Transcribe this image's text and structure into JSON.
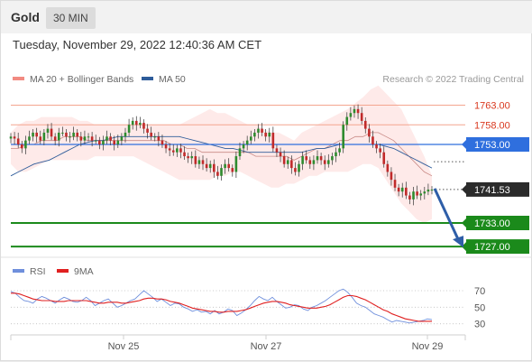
{
  "header": {
    "asset": "Gold",
    "timeframe": "30 MIN",
    "timestamp": "Tuesday, November 29, 2022 12:40:36 AM CET"
  },
  "colors": {
    "bollinger": "#f28b82",
    "bollinger_fill": "#fde3e1",
    "ma50": "#2e5c9a",
    "resistance": "#f4a58f",
    "pivot": "#2f6fde",
    "support": "#1b8a1b",
    "forecast_arrow": "#2e5ea8",
    "rsi": "#6f8fdc",
    "rsi_ma": "#e02020",
    "up_candle": "#2e8b2e",
    "down_candle": "#c02a2a"
  },
  "chart_data": [
    {
      "type": "candlestick",
      "legend": [
        {
          "name": "MA 20 + Bollinger Bands",
          "color": "#f28b82"
        },
        {
          "name": "MA 50",
          "color": "#2e5c9a"
        }
      ],
      "credit": "Research © 2022 Trading Central",
      "x_ticks": [
        "Nov 25",
        "Nov 27",
        "Nov 29"
      ],
      "levels": [
        {
          "value": 1763.0,
          "label": "1763.00",
          "kind": "resistance"
        },
        {
          "value": 1758.0,
          "label": "1758.00",
          "kind": "resistance"
        },
        {
          "value": 1753.0,
          "label": "1753.00",
          "kind": "pivot"
        },
        {
          "value": 1733.0,
          "label": "1733.00",
          "kind": "support"
        },
        {
          "value": 1727.0,
          "label": "1727.00",
          "kind": "support"
        }
      ],
      "last_price": {
        "value": 1741.53,
        "label": "1741.53"
      },
      "forecast": {
        "from": 1741.53,
        "to": 1727.0,
        "direction": "down"
      },
      "close": [
        1755,
        1754.5,
        1753,
        1752,
        1754,
        1755,
        1756,
        1755,
        1754,
        1756,
        1757,
        1755,
        1754,
        1756,
        1756,
        1755,
        1755,
        1756,
        1755,
        1754,
        1755,
        1755,
        1754,
        1754,
        1753,
        1754,
        1755,
        1754,
        1753,
        1754,
        1755,
        1756,
        1758,
        1759,
        1758,
        1758.5,
        1757,
        1756,
        1755,
        1755,
        1754,
        1753,
        1752,
        1751.5,
        1751,
        1752,
        1751,
        1750,
        1749.5,
        1750,
        1748,
        1749,
        1748,
        1747,
        1748,
        1746,
        1745,
        1747,
        1748,
        1747,
        1746,
        1750,
        1752,
        1753,
        1754,
        1755,
        1756,
        1757,
        1756,
        1755,
        1756,
        1752,
        1751,
        1750,
        1748,
        1749,
        1747,
        1746,
        1748,
        1750,
        1749,
        1748,
        1749,
        1750,
        1749,
        1748,
        1749,
        1750,
        1751,
        1752,
        1758,
        1760,
        1761,
        1762,
        1761,
        1759,
        1757,
        1755,
        1753,
        1752,
        1751,
        1748,
        1746,
        1744,
        1742,
        1741,
        1742,
        1740,
        1739,
        1741,
        1740,
        1740.5,
        1741,
        1741.5,
        1741.5
      ],
      "bb_upper": [
        1756,
        1758,
        1759,
        1759,
        1760,
        1760,
        1760,
        1760,
        1760,
        1759,
        1759,
        1758,
        1758,
        1758,
        1758,
        1758,
        1758,
        1758,
        1758,
        1758,
        1758,
        1758,
        1758,
        1759,
        1760,
        1761,
        1762,
        1761,
        1761,
        1760,
        1759,
        1758,
        1758,
        1757,
        1756,
        1756,
        1755,
        1754,
        1756,
        1757,
        1758,
        1759,
        1760,
        1761,
        1762,
        1763.5,
        1765,
        1767,
        1768,
        1766,
        1764,
        1762,
        1758,
        1754,
        1750,
        1745
      ],
      "bb_lower": [
        1748,
        1746,
        1746,
        1747,
        1748,
        1749,
        1749,
        1749,
        1749,
        1749,
        1749,
        1750,
        1750,
        1750,
        1750,
        1750,
        1750,
        1749,
        1748,
        1747,
        1746,
        1745,
        1744,
        1744,
        1744,
        1744,
        1744,
        1745,
        1745,
        1746,
        1746,
        1745,
        1744,
        1743,
        1742,
        1742,
        1743,
        1743,
        1744,
        1745,
        1745,
        1746,
        1746,
        1746,
        1746,
        1747,
        1748,
        1748,
        1747,
        1744,
        1741,
        1738,
        1736,
        1734,
        1733,
        1734
      ],
      "ma20": [
        1752,
        1752,
        1753,
        1753,
        1754,
        1754,
        1754,
        1755,
        1755,
        1755,
        1754,
        1754,
        1754,
        1754,
        1754,
        1754,
        1754,
        1754,
        1754,
        1754,
        1754,
        1753,
        1753,
        1752,
        1752,
        1751,
        1751,
        1751,
        1751,
        1751,
        1751,
        1751,
        1750,
        1750,
        1750,
        1750,
        1750,
        1749,
        1750,
        1751,
        1752,
        1752,
        1753,
        1754,
        1754,
        1755,
        1755,
        1756,
        1756,
        1755,
        1754,
        1752,
        1750,
        1748,
        1746,
        1745
      ],
      "ma50": [
        1745,
        1746,
        1747,
        1748,
        1748.5,
        1749,
        1750,
        1751,
        1752,
        1753,
        1753.5,
        1754,
        1754,
        1754.5,
        1755,
        1755,
        1755,
        1755,
        1755,
        1755,
        1755,
        1755,
        1755,
        1754.5,
        1754,
        1753.5,
        1753,
        1752.5,
        1752,
        1752,
        1751.5,
        1751,
        1751,
        1751,
        1751,
        1751,
        1751,
        1751,
        1751,
        1751.5,
        1752,
        1752,
        1752.5,
        1753,
        1753,
        1753,
        1753,
        1753,
        1753,
        1752.5,
        1752,
        1751,
        1750,
        1749,
        1748,
        1747
      ]
    },
    {
      "type": "line",
      "legend": [
        {
          "name": "RSI",
          "color": "#6f8fdc"
        },
        {
          "name": "9MA",
          "color": "#e02020"
        }
      ],
      "y_ticks": [
        "70",
        "50",
        "30"
      ],
      "ylim": [
        20,
        80
      ],
      "series": [
        {
          "name": "RSI",
          "values": [
            69,
            67,
            62,
            58,
            57,
            55,
            60,
            63,
            61,
            58,
            55,
            59,
            62,
            60,
            57,
            56,
            58,
            62,
            58,
            52,
            55,
            58,
            60,
            55,
            50,
            52,
            55,
            58,
            60,
            65,
            70,
            66,
            62,
            57,
            60,
            56,
            52,
            55,
            54,
            50,
            48,
            45,
            47,
            44,
            45,
            42,
            46,
            42,
            44,
            48,
            46,
            40,
            43,
            47,
            52,
            58,
            63,
            60,
            58,
            62,
            57,
            53,
            49,
            50,
            53,
            52,
            48,
            46,
            50,
            52,
            55,
            58,
            62,
            66,
            70,
            72,
            68,
            62,
            55,
            52,
            50,
            46,
            42,
            40,
            38,
            35,
            32,
            34,
            33,
            32,
            31,
            32,
            33,
            34,
            36,
            35
          ]
        },
        {
          "name": "9MA",
          "values": [
            67,
            67,
            66,
            64,
            62,
            60,
            59,
            58,
            58,
            58,
            57,
            57,
            57,
            58,
            58,
            58,
            58,
            58,
            57,
            56,
            55,
            55,
            56,
            56,
            56,
            55,
            55,
            56,
            57,
            58,
            60,
            61,
            61,
            60,
            60,
            59,
            57,
            56,
            55,
            53,
            51,
            49,
            48,
            47,
            46,
            45,
            45,
            44,
            44,
            45,
            45,
            45,
            46,
            47,
            49,
            51,
            53,
            55,
            56,
            57,
            57,
            56,
            55,
            53,
            52,
            51,
            50,
            49,
            49,
            49,
            50,
            51,
            53,
            56,
            59,
            62,
            64,
            64,
            63,
            61,
            59,
            56,
            53,
            50,
            47,
            45,
            42,
            40,
            38,
            36,
            35,
            34,
            33,
            33,
            33,
            33
          ]
        }
      ]
    }
  ]
}
